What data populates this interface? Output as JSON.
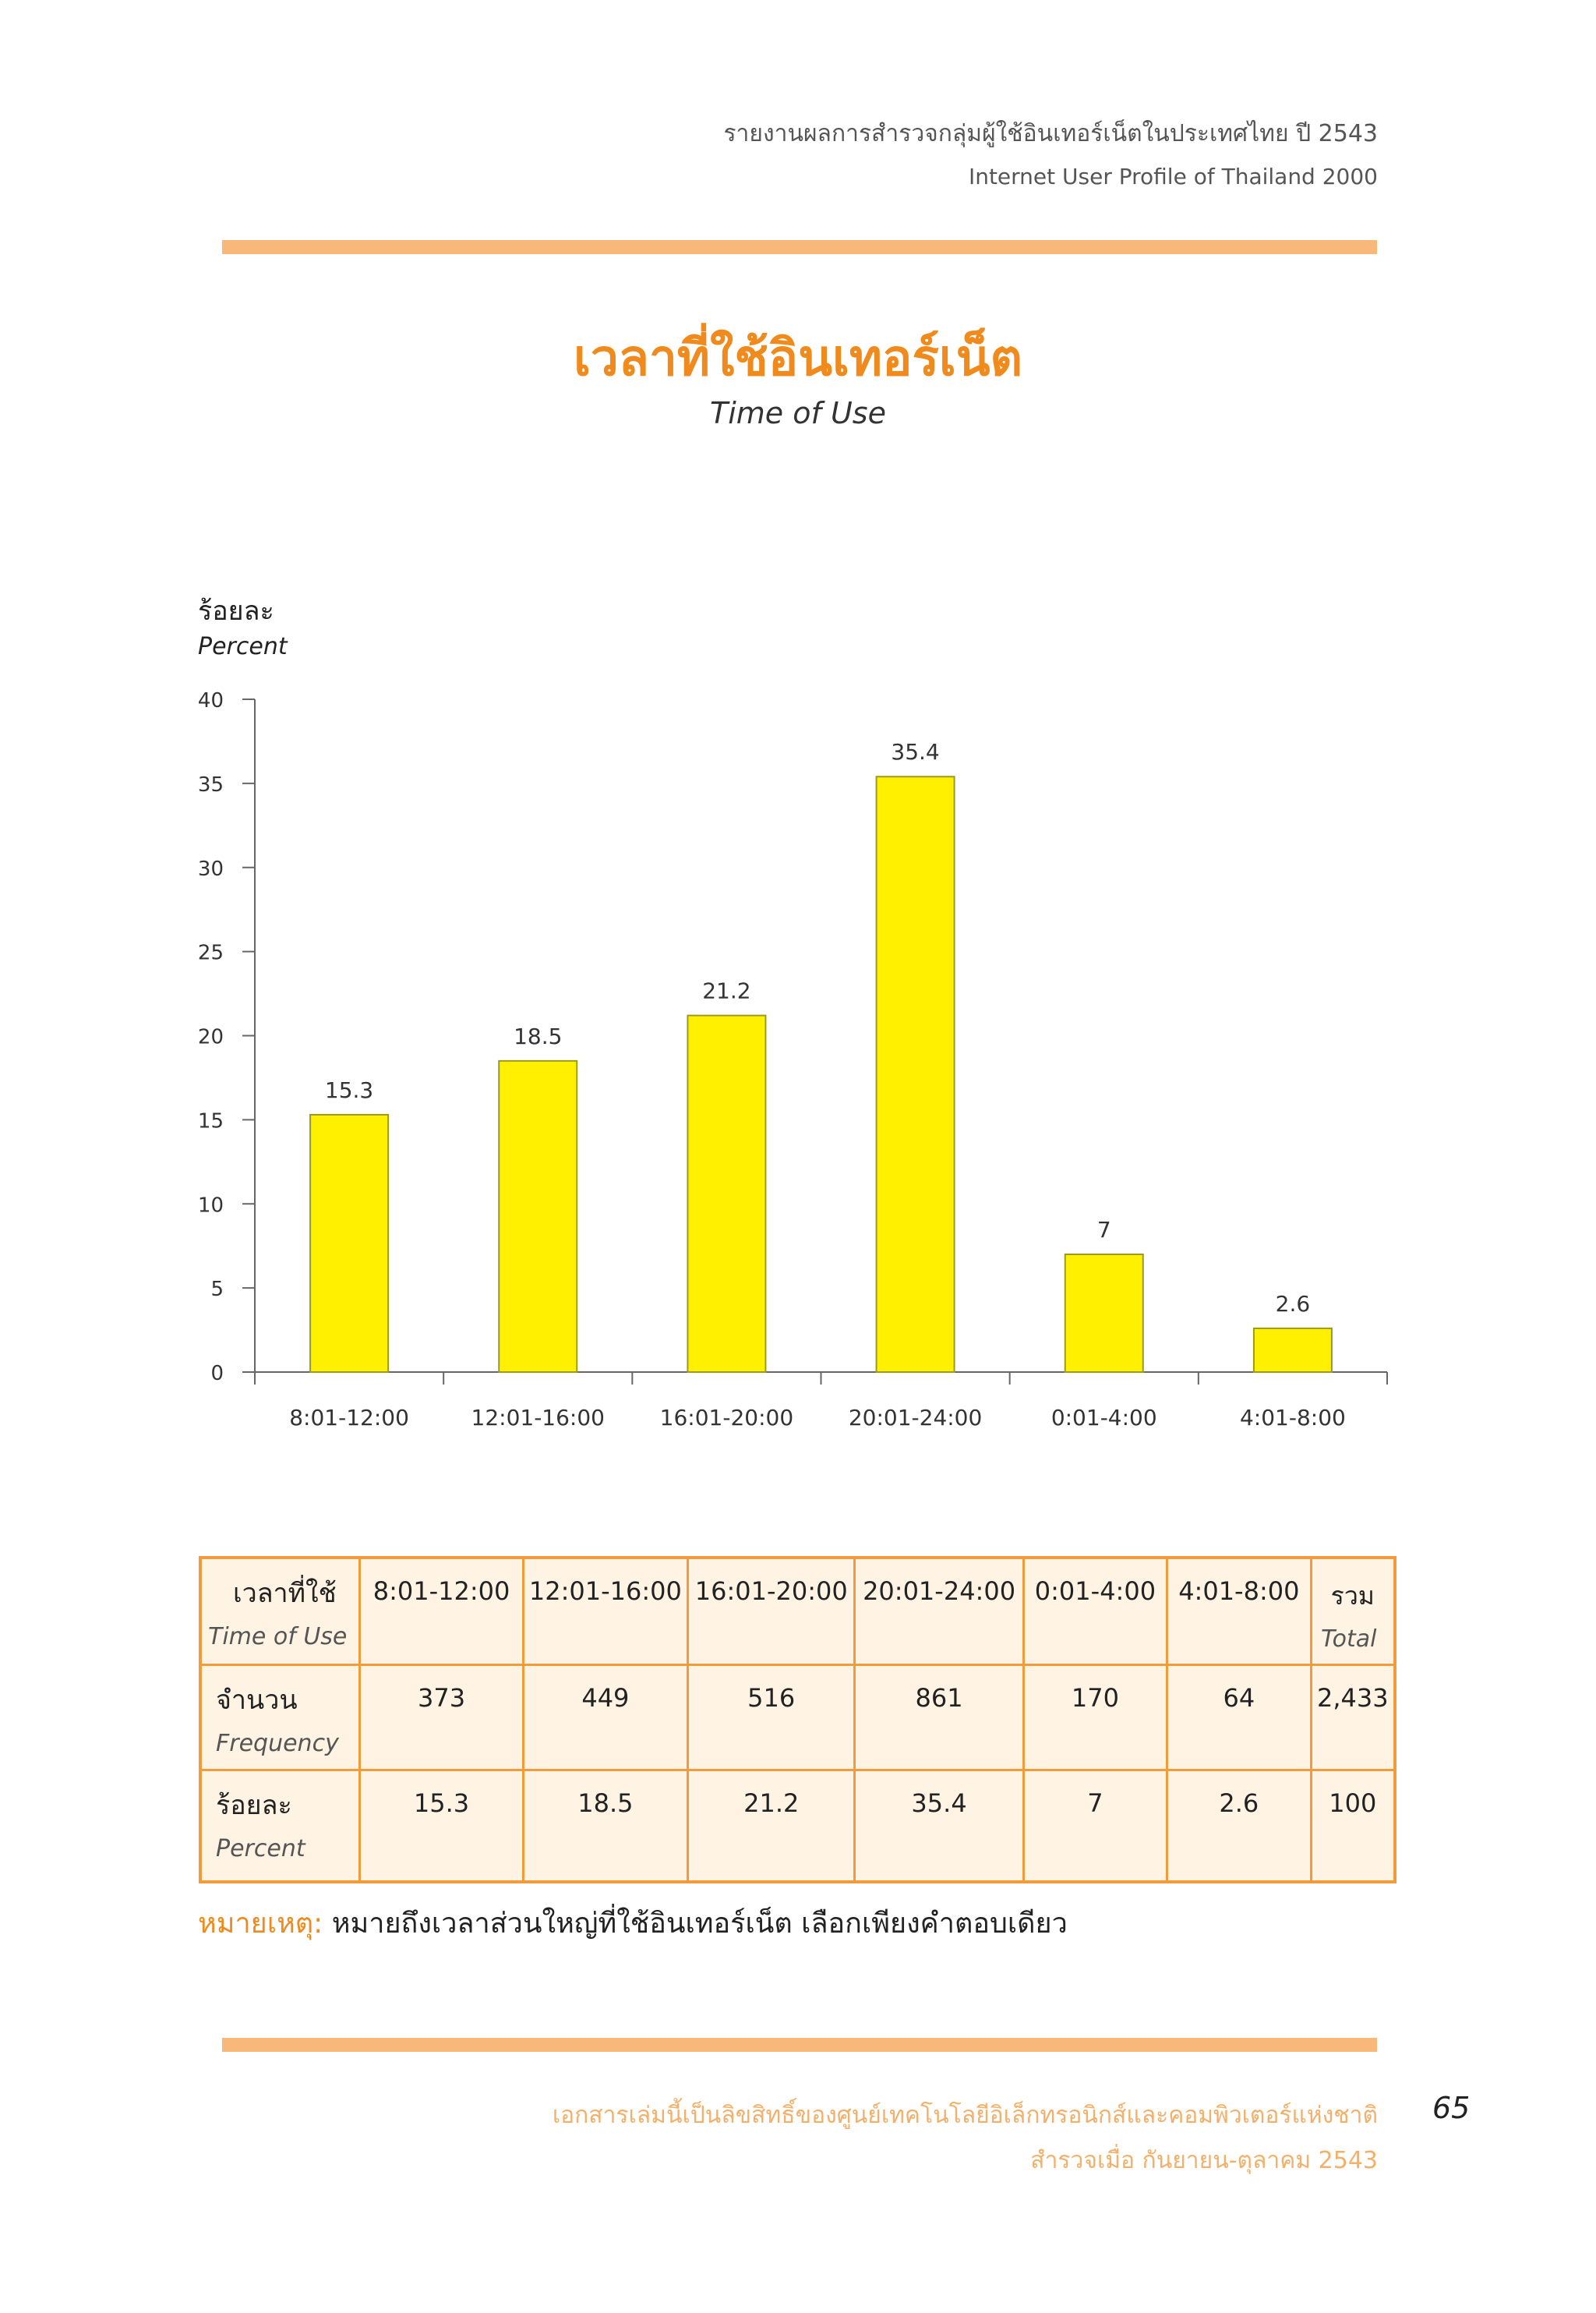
{
  "header": {
    "line_th": "รายงานผลการสำรวจกลุ่มผู้ใช้อินเทอร์เน็ตในประเทศไทย ปี 2543",
    "line_en": "Internet User Profile of Thailand 2000"
  },
  "title": {
    "th": "เวลาที่ใช้อินเทอร์เน็ต",
    "en": "Time of Use"
  },
  "chart_data": {
    "type": "bar",
    "title": "เวลาที่ใช้อินเทอร์เน็ต",
    "subtitle": "Time of Use",
    "ylabel_th": "ร้อยละ",
    "ylabel_en": "Percent",
    "categories": [
      "8:01-12:00",
      "12:01-16:00",
      "16:01-20:00",
      "20:01-24:00",
      "0:01-4:00",
      "4:01-8:00"
    ],
    "values": [
      15.3,
      18.5,
      21.2,
      35.4,
      7,
      2.6
    ],
    "value_labels": [
      "15.3",
      "18.5",
      "21.2",
      "35.4",
      "7",
      "2.6"
    ],
    "ylim": [
      0,
      40
    ],
    "yticks": [
      0,
      5,
      10,
      15,
      20,
      25,
      30,
      35,
      40
    ],
    "grid": false,
    "bar_color": "#fff000",
    "bar_edge_color": "#9a9a20"
  },
  "table": {
    "row_headers": [
      {
        "th": "เวลาที่ใช้",
        "en": "Time of Use"
      },
      {
        "th": "จำนวน",
        "en": "Frequency"
      },
      {
        "th": "ร้อยละ",
        "en": "Percent"
      }
    ],
    "columns": [
      "8:01-12:00",
      "12:01-16:00",
      "16:01-20:00",
      "20:01-24:00",
      "0:01-4:00",
      "4:01-8:00"
    ],
    "total_header": {
      "th": "รวม",
      "en": "Total"
    },
    "frequency": [
      "373",
      "449",
      "516",
      "861",
      "170",
      "64",
      "2,433"
    ],
    "percent": [
      "15.3",
      "18.5",
      "21.2",
      "35.4",
      "7",
      "2.6",
      "100"
    ]
  },
  "note": {
    "lead": "หมายเหตุ:",
    "text": "หมายถึงเวลาส่วนใหญ่ที่ใช้อินเทอร์เน็ต เลือกเพียงคำตอบเดียว"
  },
  "footer": {
    "line1": "เอกสารเล่มนี้เป็นลิขสิทธิ์ของศูนย์เทคโนโลยีอิเล็กทรอนิกส์และคอมพิวเตอร์แห่งชาติ",
    "line2": "สำรวจเมื่อ กันยายน-ตุลาคม 2543",
    "page_number": "65"
  },
  "colors": {
    "accent": "#f08a1c",
    "rule": "#f7b87a",
    "table_border": "#f39a3a",
    "table_fill": "#fff4e4"
  }
}
